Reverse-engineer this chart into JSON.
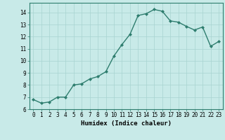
{
  "x": [
    0,
    1,
    2,
    3,
    4,
    5,
    6,
    7,
    8,
    9,
    10,
    11,
    12,
    13,
    14,
    15,
    16,
    17,
    18,
    19,
    20,
    21,
    22,
    23
  ],
  "y": [
    6.8,
    6.5,
    6.6,
    7.0,
    7.0,
    8.0,
    8.1,
    8.5,
    8.7,
    9.1,
    10.4,
    11.35,
    12.2,
    13.75,
    13.9,
    14.25,
    14.1,
    13.3,
    13.2,
    12.85,
    12.55,
    12.8,
    11.2,
    11.6
  ],
  "line_color": "#2e7d6e",
  "marker": "D",
  "markersize": 2.0,
  "linewidth": 1.0,
  "bg_color": "#c8eae8",
  "grid_color": "#a8d4d0",
  "xlabel": "Humidex (Indice chaleur)",
  "xlim": [
    -0.5,
    23.5
  ],
  "ylim": [
    6,
    14.8
  ],
  "yticks": [
    6,
    7,
    8,
    9,
    10,
    11,
    12,
    13,
    14
  ],
  "xticks": [
    0,
    1,
    2,
    3,
    4,
    5,
    6,
    7,
    8,
    9,
    10,
    11,
    12,
    13,
    14,
    15,
    16,
    17,
    18,
    19,
    20,
    21,
    22,
    23
  ],
  "tick_fontsize": 5.5,
  "xlabel_fontsize": 6.5
}
